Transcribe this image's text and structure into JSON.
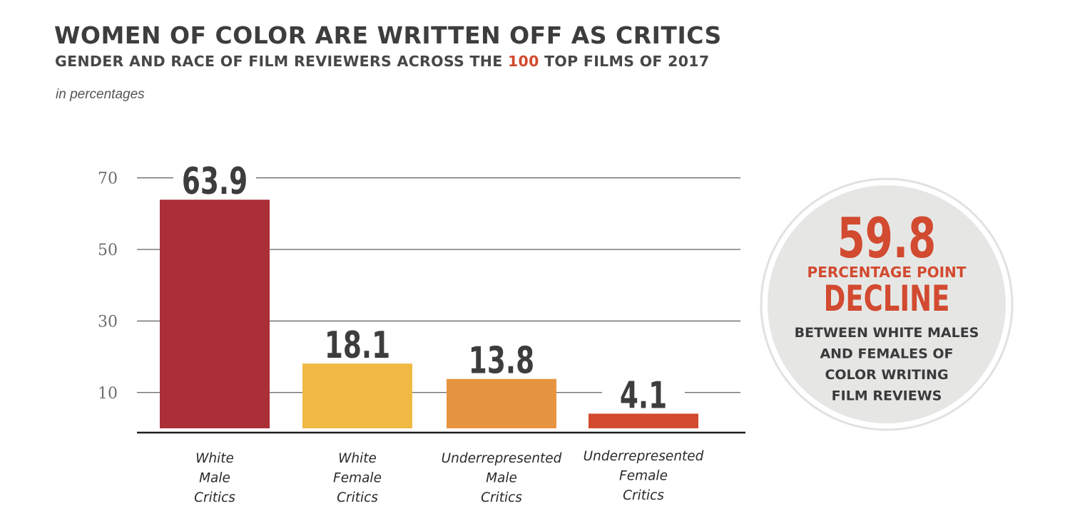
{
  "header": {
    "title": "WOMEN OF COLOR ARE WRITTEN OFF AS CRITICS",
    "subtitle_before": "GENDER AND RACE OF FILM REVIEWERS ACROSS THE ",
    "subtitle_highlight": "100",
    "subtitle_after": " TOP FILMS OF 2017",
    "unit_note": "in percentages"
  },
  "colors": {
    "white_male": "#ab2f37",
    "white_female": "#efb944",
    "underrepresented_male": "#e79440",
    "underrepresented_female": "#d24a30",
    "accent": "#d24a30",
    "text_dark": "#3d3d3d",
    "circle_fill": "#e6e7e5"
  },
  "chart_data": {
    "type": "bar",
    "categories": [
      [
        "White",
        "Male",
        "Critics"
      ],
      [
        "White",
        "Female",
        "Critics"
      ],
      [
        "Underrepresented",
        "Male",
        "Critics"
      ],
      [
        "Underrepresented",
        "Female",
        "Critics"
      ]
    ],
    "values": [
      63.9,
      18.1,
      13.8,
      4.1
    ],
    "data_labels": [
      "63.9",
      "18.1",
      "13.8",
      "4.1"
    ],
    "bar_colors": [
      "#ab2f37",
      "#efb944",
      "#e79440",
      "#d24a30"
    ],
    "yticks": [
      10,
      30,
      50,
      70
    ],
    "grid": true,
    "legend": "none"
  },
  "callout": {
    "value": "59.8",
    "line1": "PERCENTAGE POINT",
    "line2": "DECLINE",
    "body": [
      "BETWEEN WHITE MALES",
      "AND FEMALES OF",
      "COLOR WRITING",
      "FILM REVIEWS"
    ]
  }
}
